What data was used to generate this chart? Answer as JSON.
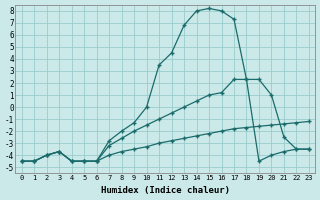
{
  "xlabel": "Humidex (Indice chaleur)",
  "background_color": "#cce9e9",
  "grid_color": "#99cccc",
  "line_color": "#1a6b6b",
  "xlim": [
    -0.5,
    23.5
  ],
  "ylim": [
    -5.5,
    8.5
  ],
  "xticks": [
    0,
    1,
    2,
    3,
    4,
    5,
    6,
    7,
    8,
    9,
    10,
    11,
    12,
    13,
    14,
    15,
    16,
    17,
    18,
    19,
    20,
    21,
    22,
    23
  ],
  "yticks": [
    -5,
    -4,
    -3,
    -2,
    -1,
    0,
    1,
    2,
    3,
    4,
    5,
    6,
    7,
    8
  ],
  "line1_x": [
    0,
    1,
    2,
    3,
    4,
    5,
    6,
    7,
    8,
    9,
    10,
    11,
    12,
    13,
    14,
    15,
    16,
    17,
    18,
    19,
    20,
    21,
    22,
    23
  ],
  "line1_y": [
    -4.5,
    -4.5,
    -4.0,
    -3.7,
    -4.5,
    -4.5,
    -4.5,
    -4.0,
    -3.7,
    -3.5,
    -3.3,
    -3.0,
    -2.8,
    -2.6,
    -2.4,
    -2.2,
    -2.0,
    -1.8,
    -1.7,
    -1.6,
    -1.5,
    -1.4,
    -1.3,
    -1.2
  ],
  "line2_x": [
    0,
    1,
    2,
    3,
    4,
    5,
    6,
    7,
    8,
    9,
    10,
    11,
    12,
    13,
    14,
    15,
    16,
    17,
    18,
    19,
    20,
    21,
    22,
    23
  ],
  "line2_y": [
    -4.5,
    -4.5,
    -4.0,
    -3.7,
    -4.5,
    -4.5,
    -4.5,
    -3.2,
    -2.6,
    -2.0,
    -1.5,
    -1.0,
    -0.5,
    0.0,
    0.5,
    1.0,
    1.2,
    2.3,
    2.3,
    2.3,
    1.0,
    -2.5,
    -3.5,
    -3.5
  ],
  "line3_x": [
    0,
    1,
    2,
    3,
    4,
    5,
    6,
    7,
    8,
    9,
    10,
    11,
    12,
    13,
    14,
    15,
    16,
    17,
    18,
    19,
    20,
    21,
    22,
    23
  ],
  "line3_y": [
    -4.5,
    -4.5,
    -4.0,
    -3.7,
    -4.5,
    -4.5,
    -4.5,
    -2.8,
    -2.0,
    -1.3,
    0.0,
    3.5,
    4.5,
    6.8,
    8.0,
    8.2,
    8.0,
    7.3,
    2.3,
    -4.5,
    -4.0,
    -3.7,
    -3.5,
    -3.5
  ]
}
